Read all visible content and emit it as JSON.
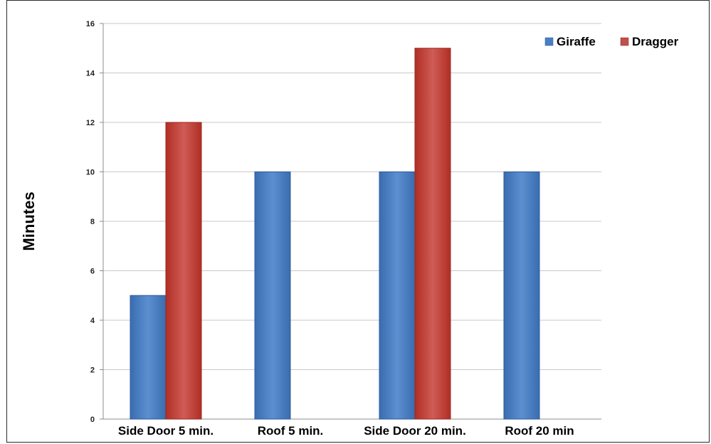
{
  "chart_data": {
    "type": "bar",
    "title": "",
    "xlabel": "",
    "ylabel": "Minutes",
    "ylim": [
      0,
      16
    ],
    "yticks": [
      0,
      2,
      4,
      6,
      8,
      10,
      12,
      14,
      16
    ],
    "grid": true,
    "legend_position": "top-right",
    "categories": [
      "Side Door 5 min.",
      "Roof 5 min.",
      "Side Door 20 min.",
      "Roof 20 min"
    ],
    "series": [
      {
        "name": "Giraffe",
        "color": "#4a7fc1",
        "values": [
          5,
          10,
          10,
          10
        ]
      },
      {
        "name": "Dragger",
        "color": "#c0504d",
        "values": [
          12,
          null,
          15,
          null
        ]
      }
    ]
  }
}
